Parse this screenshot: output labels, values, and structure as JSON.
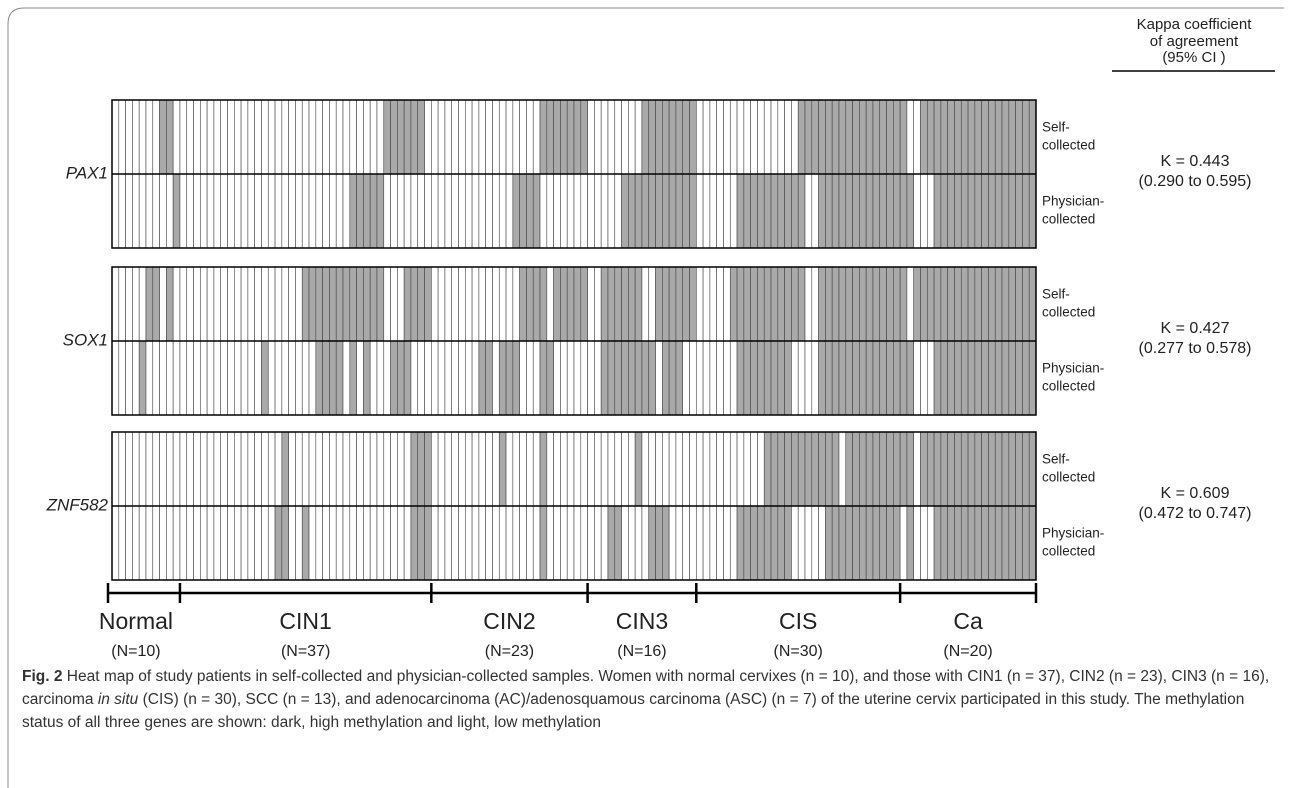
{
  "kappa_header": [
    "Kappa coefficient",
    "of agreement",
    "(95% CI )"
  ],
  "genes": [
    {
      "name": "PAX1",
      "kappa": "K = 0.443",
      "ci": "(0.290 to 0.595)",
      "rows": [
        {
          "label": [
            "Self-",
            "collected"
          ],
          "cells": [
            [
              0,
              0,
              0,
              0,
              0,
              0,
              0,
              1,
              1,
              0
            ],
            [
              0,
              0,
              0,
              0,
              0,
              0,
              0,
              0,
              0,
              0,
              0,
              0,
              0,
              0,
              0,
              0,
              0,
              0,
              0,
              0,
              0,
              0,
              0,
              0,
              0,
              0,
              0,
              0,
              0,
              0,
              1,
              1,
              1,
              1,
              1,
              1,
              0
            ],
            [
              0,
              0,
              0,
              0,
              0,
              0,
              0,
              0,
              0,
              0,
              0,
              0,
              0,
              0,
              0,
              0,
              1,
              1,
              1,
              1,
              1,
              1,
              1
            ],
            [
              0,
              0,
              0,
              0,
              0,
              0,
              0,
              0,
              1,
              1,
              1,
              1,
              1,
              1,
              1,
              1
            ],
            [
              0,
              0,
              0,
              0,
              0,
              0,
              0,
              0,
              0,
              0,
              0,
              0,
              0,
              0,
              0,
              1,
              1,
              1,
              1,
              1,
              1,
              1,
              1,
              1,
              1,
              1,
              1,
              1,
              1,
              1
            ],
            [
              1,
              0,
              0,
              1,
              1,
              1,
              1,
              1,
              1,
              1,
              1,
              1,
              1,
              1,
              1,
              1,
              1,
              1,
              1,
              1
            ]
          ]
        },
        {
          "label": [
            "Physician-",
            "collected"
          ],
          "cells": [
            [
              0,
              0,
              0,
              0,
              0,
              0,
              0,
              0,
              0,
              1
            ],
            [
              0,
              0,
              0,
              0,
              0,
              0,
              0,
              0,
              0,
              0,
              0,
              0,
              0,
              0,
              0,
              0,
              0,
              0,
              0,
              0,
              0,
              0,
              0,
              0,
              0,
              1,
              1,
              1,
              1,
              1,
              0,
              0,
              0,
              0,
              0,
              0,
              0
            ],
            [
              0,
              0,
              0,
              0,
              0,
              0,
              0,
              0,
              0,
              0,
              0,
              0,
              1,
              1,
              1,
              1,
              0,
              0,
              0,
              0,
              0,
              0,
              0
            ],
            [
              0,
              0,
              0,
              0,
              0,
              1,
              1,
              1,
              1,
              1,
              1,
              1,
              1,
              1,
              1,
              1
            ],
            [
              0,
              0,
              0,
              0,
              0,
              0,
              1,
              1,
              1,
              1,
              1,
              1,
              1,
              1,
              1,
              1,
              0,
              0,
              1,
              1,
              1,
              1,
              1,
              1,
              1,
              1,
              1,
              1,
              1,
              1
            ],
            [
              1,
              1,
              0,
              0,
              0,
              1,
              1,
              1,
              1,
              1,
              1,
              1,
              1,
              1,
              1,
              1,
              1,
              1,
              1,
              1
            ]
          ]
        }
      ]
    },
    {
      "name": "SOX1",
      "kappa": "K = 0.427",
      "ci": "(0.277 to 0.578)",
      "rows": [
        {
          "label": [
            "Self-",
            "collected"
          ],
          "cells": [
            [
              0,
              0,
              0,
              0,
              0,
              1,
              1,
              0,
              1,
              0
            ],
            [
              0,
              0,
              0,
              0,
              0,
              0,
              0,
              0,
              0,
              0,
              0,
              0,
              0,
              0,
              0,
              0,
              0,
              0,
              1,
              1,
              1,
              1,
              1,
              1,
              1,
              1,
              1,
              1,
              1,
              1,
              0,
              0,
              0,
              1,
              1,
              1,
              1
            ],
            [
              0,
              0,
              0,
              0,
              0,
              0,
              0,
              0,
              0,
              0,
              0,
              0,
              0,
              1,
              1,
              1,
              1,
              0,
              1,
              1,
              1,
              1,
              1
            ],
            [
              0,
              0,
              1,
              1,
              1,
              1,
              1,
              1,
              0,
              0,
              1,
              1,
              1,
              1,
              1,
              1
            ],
            [
              0,
              0,
              0,
              0,
              0,
              1,
              1,
              1,
              1,
              1,
              1,
              1,
              1,
              1,
              1,
              1,
              0,
              0,
              1,
              1,
              1,
              1,
              1,
              1,
              1,
              1,
              1,
              1,
              1,
              1
            ],
            [
              1,
              0,
              1,
              1,
              1,
              1,
              1,
              1,
              1,
              1,
              1,
              1,
              1,
              1,
              1,
              1,
              1,
              1,
              1,
              1
            ]
          ]
        },
        {
          "label": [
            "Physician-",
            "collected"
          ],
          "cells": [
            [
              0,
              0,
              0,
              0,
              1,
              0,
              0,
              0,
              0,
              0
            ],
            [
              0,
              0,
              0,
              0,
              0,
              0,
              0,
              0,
              0,
              0,
              0,
              0,
              1,
              0,
              0,
              0,
              0,
              0,
              0,
              0,
              1,
              1,
              1,
              1,
              0,
              1,
              0,
              1,
              0,
              0,
              0,
              1,
              1,
              1,
              0,
              0,
              0
            ],
            [
              0,
              0,
              0,
              0,
              0,
              0,
              0,
              1,
              1,
              0,
              1,
              1,
              1,
              0,
              0,
              0,
              1,
              1,
              0,
              0,
              0,
              0,
              0
            ],
            [
              0,
              0,
              1,
              1,
              1,
              1,
              1,
              1,
              1,
              1,
              0,
              1,
              1,
              1,
              0,
              0
            ],
            [
              0,
              0,
              0,
              0,
              0,
              0,
              1,
              1,
              1,
              1,
              1,
              1,
              1,
              1,
              0,
              0,
              0,
              0,
              1,
              1,
              1,
              1,
              1,
              1,
              1,
              1,
              1,
              1,
              1,
              1
            ],
            [
              1,
              1,
              0,
              0,
              0,
              1,
              1,
              1,
              1,
              1,
              1,
              1,
              1,
              1,
              1,
              1,
              1,
              1,
              1,
              1
            ]
          ]
        }
      ]
    },
    {
      "name": "ZNF582",
      "kappa": "K = 0.609",
      "ci": "(0.472 to 0.747)",
      "rows": [
        {
          "label": [
            "Self-",
            "collected"
          ],
          "cells": [
            [
              0,
              0,
              0,
              0,
              0,
              0,
              0,
              0,
              0,
              0
            ],
            [
              0,
              0,
              0,
              0,
              0,
              0,
              0,
              0,
              0,
              0,
              0,
              0,
              0,
              0,
              0,
              1,
              0,
              0,
              0,
              0,
              0,
              0,
              0,
              0,
              0,
              0,
              0,
              0,
              0,
              0,
              0,
              0,
              0,
              0,
              1,
              1,
              1
            ],
            [
              0,
              0,
              0,
              0,
              0,
              0,
              0,
              0,
              0,
              0,
              1,
              0,
              0,
              0,
              0,
              0,
              1,
              0,
              0,
              0,
              0,
              0,
              0
            ],
            [
              0,
              0,
              0,
              0,
              0,
              0,
              0,
              1,
              0,
              0,
              0,
              0,
              0,
              0,
              0,
              0
            ],
            [
              0,
              0,
              0,
              0,
              0,
              0,
              0,
              0,
              0,
              0,
              1,
              1,
              1,
              1,
              1,
              1,
              1,
              1,
              1,
              1,
              1,
              0,
              1,
              1,
              1,
              1,
              1,
              1,
              1,
              1
            ],
            [
              1,
              1,
              0,
              1,
              1,
              1,
              1,
              1,
              1,
              1,
              1,
              1,
              1,
              1,
              1,
              1,
              1,
              1,
              1,
              1
            ]
          ]
        },
        {
          "label": [
            "Physician-",
            "collected"
          ],
          "cells": [
            [
              0,
              0,
              0,
              0,
              0,
              0,
              0,
              0,
              0,
              0
            ],
            [
              0,
              0,
              0,
              0,
              0,
              0,
              0,
              0,
              0,
              0,
              0,
              0,
              0,
              0,
              1,
              1,
              0,
              0,
              1,
              0,
              0,
              0,
              0,
              0,
              0,
              0,
              0,
              0,
              0,
              0,
              0,
              0,
              0,
              0,
              1,
              1,
              1
            ],
            [
              0,
              0,
              0,
              0,
              0,
              0,
              0,
              0,
              0,
              0,
              0,
              0,
              0,
              0,
              0,
              0,
              1,
              0,
              0,
              0,
              0,
              0,
              0
            ],
            [
              0,
              0,
              0,
              1,
              1,
              0,
              0,
              0,
              0,
              1,
              1,
              1,
              0,
              0,
              0,
              0
            ],
            [
              0,
              0,
              0,
              0,
              0,
              0,
              1,
              1,
              1,
              1,
              1,
              1,
              1,
              1,
              0,
              0,
              0,
              0,
              0,
              1,
              1,
              1,
              1,
              1,
              1,
              1,
              1,
              1,
              1,
              1
            ],
            [
              0,
              1,
              0,
              0,
              0,
              1,
              1,
              1,
              1,
              1,
              1,
              1,
              1,
              1,
              1,
              1,
              1,
              1,
              1,
              1
            ]
          ]
        }
      ]
    }
  ],
  "groups": [
    {
      "name": "Normal",
      "n": "(N=10)"
    },
    {
      "name": "CIN1",
      "n": "(N=37)"
    },
    {
      "name": "CIN2",
      "n": "(N=23)"
    },
    {
      "name": "CIN3",
      "n": "(N=16)"
    },
    {
      "name": "CIS",
      "n": "(N=30)"
    },
    {
      "name": "Ca",
      "n": "(N=20)"
    }
  ],
  "caption": {
    "label": "Fig. 2",
    "parts": [
      " Heat map of study patients in self-collected and physician-collected samples. Women with normal cervixes (n = 10), and those with CIN1 (n = 37), CIN2 (n = 23), CIN3 (n = 16), carcinoma ",
      "in situ",
      " (CIS) (n = 30), SCC (n = 13), and adenocarcinoma (AC)/adenosquamous carcinoma (ASC) (n = 7) of the uterine cervix participated in this study. The methylation status of all three genes are shown: dark, high methylation and light, low methylation"
    ]
  }
}
